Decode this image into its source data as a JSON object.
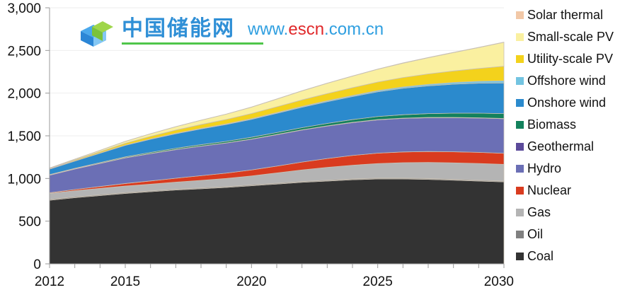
{
  "chart_data": {
    "type": "area",
    "stacked": true,
    "title": "",
    "xlabel": "",
    "ylabel": "",
    "x": [
      2012,
      2013,
      2014,
      2015,
      2016,
      2017,
      2018,
      2019,
      2020,
      2021,
      2022,
      2023,
      2024,
      2025,
      2026,
      2027,
      2028,
      2029,
      2030
    ],
    "xticks": [
      "2012",
      "2015",
      "2020",
      "2025",
      "2030"
    ],
    "xtick_values": [
      2012,
      2015,
      2020,
      2025,
      2030
    ],
    "ylim": [
      0,
      3000
    ],
    "yticks": [
      "0",
      "500",
      "1,000",
      "1,500",
      "2,000",
      "2,500",
      "3,000"
    ],
    "ytick_values": [
      0,
      500,
      1000,
      1500,
      2000,
      2500,
      3000
    ],
    "grid": true,
    "legend_position": "right",
    "series": [
      {
        "name": "Coal",
        "color": "#333333",
        "values": [
          745,
          775,
          800,
          825,
          845,
          865,
          880,
          895,
          915,
          935,
          955,
          970,
          985,
          995,
          995,
          990,
          980,
          970,
          960
        ]
      },
      {
        "name": "Oil",
        "color": "#808080",
        "values": [
          10,
          10,
          10,
          10,
          10,
          10,
          10,
          10,
          10,
          10,
          10,
          10,
          10,
          10,
          10,
          10,
          10,
          10,
          10
        ]
      },
      {
        "name": "Gas",
        "color": "#b4b4b4",
        "values": [
          70,
          72,
          74,
          76,
          78,
          82,
          88,
          95,
          105,
          120,
          135,
          150,
          160,
          170,
          180,
          188,
          193,
          196,
          195
        ]
      },
      {
        "name": "Nuclear",
        "color": "#d93b1f",
        "values": [
          8,
          14,
          22,
          30,
          38,
          46,
          55,
          63,
          70,
          80,
          92,
          104,
          115,
          122,
          126,
          128,
          130,
          130,
          130
        ]
      },
      {
        "name": "Hydro",
        "color": "#6b6fb5",
        "values": [
          205,
          240,
          270,
          300,
          320,
          335,
          345,
          352,
          360,
          368,
          375,
          380,
          385,
          390,
          393,
          396,
          399,
          402,
          405
        ]
      },
      {
        "name": "Geothermal",
        "color": "#5b4a9a",
        "values": [
          2,
          2,
          2,
          2,
          2,
          2,
          2,
          2,
          3,
          3,
          3,
          3,
          3,
          3,
          3,
          3,
          3,
          3,
          3
        ]
      },
      {
        "name": "Biomass",
        "color": "#13815c",
        "values": [
          5,
          6,
          8,
          10,
          12,
          14,
          16,
          18,
          20,
          22,
          25,
          28,
          32,
          36,
          40,
          45,
          50,
          54,
          57
        ]
      },
      {
        "name": "Onshore wind",
        "color": "#2b8acd",
        "values": [
          65,
          85,
          110,
          135,
          155,
          170,
          185,
          198,
          210,
          225,
          240,
          255,
          270,
          290,
          310,
          325,
          340,
          352,
          360
        ]
      },
      {
        "name": "Offshore wind",
        "color": "#73c4e1",
        "values": [
          2,
          2,
          3,
          3,
          4,
          5,
          6,
          7,
          8,
          9,
          10,
          11,
          12,
          14,
          16,
          18,
          20,
          22,
          25
        ]
      },
      {
        "name": "Utility-scale PV",
        "color": "#f3d21c",
        "values": [
          5,
          10,
          15,
          22,
          30,
          38,
          45,
          52,
          60,
          68,
          76,
          84,
          92,
          100,
          110,
          122,
          135,
          150,
          170
        ]
      },
      {
        "name": "Small-scale PV",
        "color": "#faf0a0",
        "values": [
          5,
          10,
          15,
          22,
          30,
          40,
          50,
          62,
          75,
          90,
          105,
          120,
          135,
          150,
          168,
          190,
          215,
          245,
          280
        ]
      },
      {
        "name": "Solar thermal",
        "color": "#f2c8a7",
        "values": [
          1,
          1,
          1,
          1,
          1,
          1,
          1,
          1,
          2,
          2,
          2,
          2,
          2,
          2,
          3,
          3,
          3,
          3,
          3
        ]
      }
    ],
    "legend_order": [
      "Solar thermal",
      "Small-scale PV",
      "Utility-scale PV",
      "Offshore wind",
      "Onshore wind",
      "Biomass",
      "Geothermal",
      "Hydro",
      "Nuclear",
      "Gas",
      "Oil",
      "Coal"
    ]
  },
  "watermark": {
    "name": "中国储能网",
    "url_prefix": "www.",
    "url_brand": "escn",
    "url_suffix": ".com.cn"
  }
}
